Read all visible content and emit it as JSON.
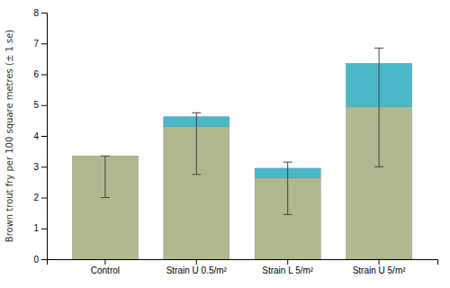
{
  "chart_data": {
    "type": "bar",
    "stacked": true,
    "grid": false,
    "ylabel": "Brown trout fry per 100 square metres (± 1 se)",
    "categories": [
      "Control",
      "Strain U 0.5/m²",
      "Strain L 5/m²",
      "Strain U 5/m²"
    ],
    "series": [
      {
        "color": "#b0b88e",
        "values": [
          3.35,
          4.3,
          2.65,
          4.95
        ]
      },
      {
        "color": "#4bb8c8",
        "values": [
          0,
          0.32,
          0.3,
          1.4
        ],
        "error_low": [
          2.0,
          2.75,
          1.45,
          3.0
        ],
        "error_high": [
          3.35,
          4.75,
          3.15,
          6.85
        ]
      }
    ],
    "ylim": [
      0,
      8
    ],
    "yticks": [
      0,
      1,
      2,
      3,
      4,
      5,
      6,
      7,
      8
    ]
  }
}
